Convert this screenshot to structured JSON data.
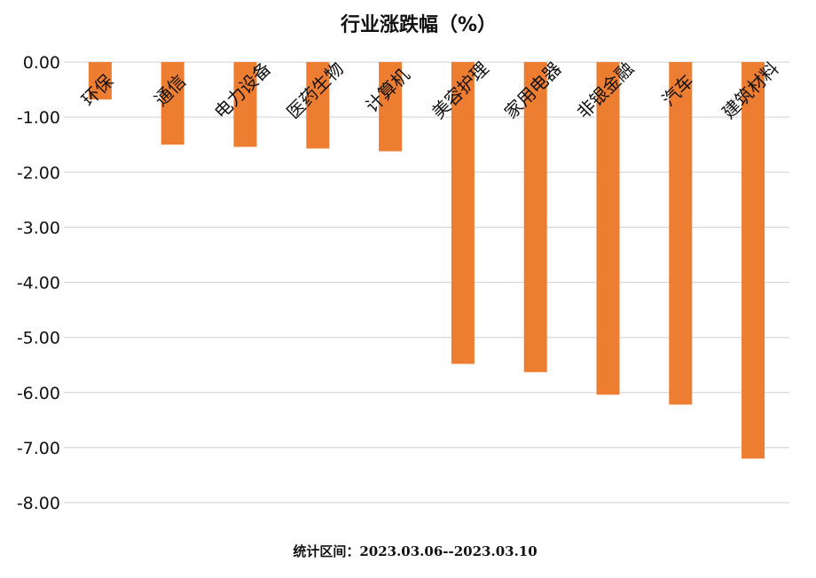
{
  "chart_data": {
    "type": "bar",
    "title": "行业涨跌幅（%）",
    "categories": [
      "环保",
      "通信",
      "电力设备",
      "医药生物",
      "计算机",
      "美容护理",
      "家用电器",
      "非银金融",
      "汽车",
      "建筑材料"
    ],
    "values": [
      -0.68,
      -1.5,
      -1.54,
      -1.57,
      -1.62,
      -5.48,
      -5.63,
      -6.04,
      -6.22,
      -7.2
    ],
    "ylim": [
      -8,
      0
    ],
    "yticks": [
      "0.00",
      "-1.00",
      "-2.00",
      "-3.00",
      "-4.00",
      "-5.00",
      "-6.00",
      "-7.00",
      "-8.00"
    ],
    "bar_color": "#ED7D31",
    "grid": true,
    "legend": "none"
  },
  "footnote": "统计区间：2023.03.06--2023.03.10"
}
